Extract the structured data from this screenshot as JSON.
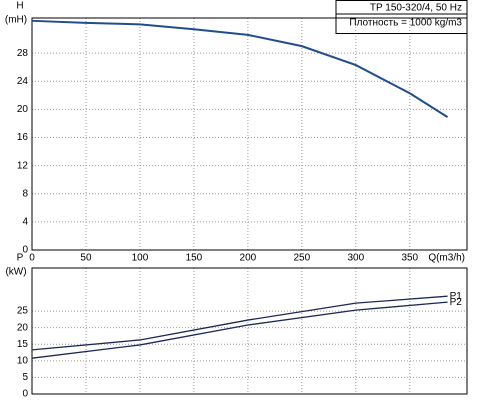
{
  "chart_data": [
    {
      "type": "line",
      "ylabel": "H",
      "yunit": "(mH)",
      "xlabel": "Q(m3/h)",
      "legend_lines": [
        "TP 150-320/4, 50 Hz",
        "Плотность = 1000 kg/m3"
      ],
      "x": [
        0,
        50,
        100,
        150,
        200,
        250,
        300,
        350,
        385
      ],
      "series": [
        {
          "name": "H",
          "color": "#1f4e8c",
          "values": [
            32.6,
            32.3,
            32.1,
            31.4,
            30.6,
            29.0,
            26.3,
            22.3,
            18.9
          ]
        }
      ],
      "xlim": [
        0,
        403
      ],
      "xticks": [
        0,
        50,
        100,
        150,
        200,
        250,
        300,
        350
      ],
      "ylim": [
        0,
        33
      ],
      "yticks": [
        0,
        4,
        8,
        12,
        16,
        20,
        24,
        28
      ],
      "grid": true
    },
    {
      "type": "line",
      "ylabel": "P",
      "yunit": "(kW)",
      "x": [
        0,
        100,
        200,
        300,
        385
      ],
      "series": [
        {
          "name": "P1",
          "color": "#1a2a55",
          "values": [
            13.3,
            16.3,
            22.3,
            27.4,
            29.5
          ]
        },
        {
          "name": "P2",
          "color": "#1a2a55",
          "values": [
            10.8,
            14.8,
            20.8,
            25.3,
            27.7
          ]
        }
      ],
      "xlim": [
        0,
        403
      ],
      "xticks": [
        0,
        50,
        100,
        150,
        200,
        250,
        300,
        350
      ],
      "ylim": [
        0,
        38
      ],
      "yticks": [
        0,
        5,
        10,
        15,
        20,
        25
      ],
      "grid": true
    }
  ]
}
